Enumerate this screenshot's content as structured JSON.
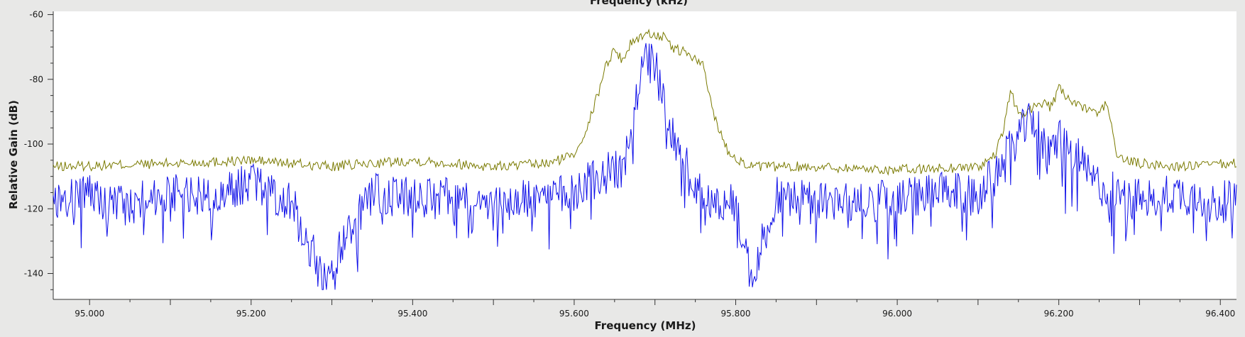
{
  "chart_data": {
    "type": "line",
    "title": "",
    "top_axis_label": "Frequency (kHz)",
    "xlabel": "Frequency (MHz)",
    "ylabel": "Relative Gain (dB)",
    "xlim": [
      94.955,
      96.42
    ],
    "ylim": [
      -148,
      -59
    ],
    "x_ticks": [
      "95.000",
      "95.200",
      "95.400",
      "95.600",
      "95.800",
      "96.000",
      "96.200",
      "96.400"
    ],
    "y_ticks": [
      "-60",
      "-80",
      "-100",
      "-120",
      "-140"
    ],
    "grid": false,
    "series": [
      {
        "color": "#7a7a00",
        "description": "averaged spectrum trace",
        "x": [
          94.955,
          95.1,
          95.2,
          95.3,
          95.4,
          95.5,
          95.57,
          95.6,
          95.61,
          95.62,
          95.63,
          95.64,
          95.65,
          95.66,
          95.67,
          95.68,
          95.69,
          95.7,
          95.71,
          95.72,
          95.73,
          95.74,
          95.75,
          95.76,
          95.77,
          95.78,
          95.79,
          95.8,
          95.81,
          95.82,
          95.9,
          96.0,
          96.1,
          96.12,
          96.13,
          96.14,
          96.15,
          96.16,
          96.17,
          96.18,
          96.19,
          96.2,
          96.21,
          96.22,
          96.23,
          96.24,
          96.25,
          96.26,
          96.27,
          96.28,
          96.3,
          96.35,
          96.42
        ],
        "y": [
          -107,
          -106,
          -105,
          -107,
          -105,
          -107,
          -106,
          -103,
          -98,
          -92,
          -84,
          -75,
          -71,
          -74,
          -69,
          -67,
          -66,
          -66,
          -67,
          -70,
          -71,
          -72,
          -74,
          -76,
          -88,
          -96,
          -102,
          -104,
          -106,
          -107,
          -107,
          -108,
          -107,
          -104,
          -97,
          -84,
          -90,
          -91,
          -88,
          -87,
          -89,
          -83,
          -85,
          -88,
          -89,
          -90,
          -90,
          -87,
          -102,
          -105,
          -106,
          -107,
          -106
        ]
      },
      {
        "color": "#1010e8",
        "description": "instantaneous spectrum trace",
        "x": [
          94.955,
          95.0,
          95.05,
          95.1,
          95.15,
          95.2,
          95.25,
          95.29,
          95.35,
          95.4,
          95.45,
          95.5,
          95.55,
          95.6,
          95.62,
          95.64,
          95.66,
          95.67,
          95.68,
          95.69,
          95.7,
          95.71,
          95.72,
          95.73,
          95.74,
          95.75,
          95.76,
          95.78,
          95.8,
          95.82,
          95.85,
          95.9,
          95.95,
          96.0,
          96.05,
          96.1,
          96.13,
          96.15,
          96.17,
          96.18,
          96.19,
          96.2,
          96.22,
          96.24,
          96.26,
          96.3,
          96.35,
          96.4,
          96.42
        ],
        "y": [
          -118,
          -116,
          -119,
          -114,
          -117,
          -112,
          -118,
          -142,
          -115,
          -117,
          -116,
          -118,
          -117,
          -115,
          -110,
          -109,
          -108,
          -95,
          -82,
          -74,
          -76,
          -86,
          -95,
          -101,
          -108,
          -113,
          -117,
          -118,
          -119,
          -142,
          -116,
          -117,
          -118,
          -117,
          -115,
          -116,
          -106,
          -97,
          -92,
          -100,
          -104,
          -97,
          -103,
          -111,
          -114,
          -117,
          -115,
          -119,
          -114
        ]
      }
    ]
  }
}
